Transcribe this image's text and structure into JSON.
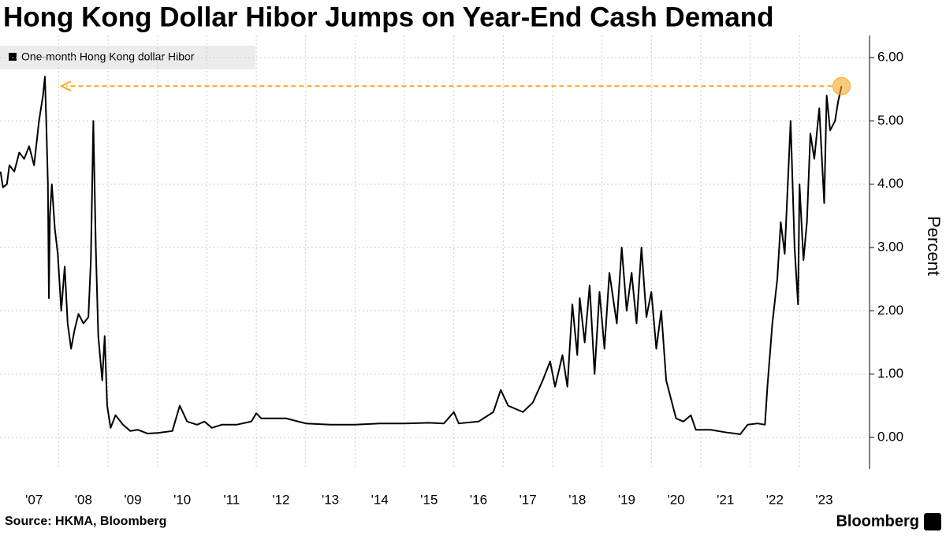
{
  "chart_data": {
    "type": "line",
    "title": "Hong Kong Dollar Hibor Jumps on Year-End Cash Demand",
    "ylabel": "Percent",
    "source": "Source: HKMA, Bloomberg",
    "brand": "Bloomberg",
    "legend": "top-left",
    "grid": true,
    "xlim": [
      2006.81,
      2024.37
    ],
    "ylim": [
      -0.5,
      6.35
    ],
    "xticks": [
      {
        "value": 2007,
        "label": "'07"
      },
      {
        "value": 2008,
        "label": "'08"
      },
      {
        "value": 2009,
        "label": "'09"
      },
      {
        "value": 2010,
        "label": "'10"
      },
      {
        "value": 2011,
        "label": "'11"
      },
      {
        "value": 2012,
        "label": "'12"
      },
      {
        "value": 2013,
        "label": "'13"
      },
      {
        "value": 2014,
        "label": "'14"
      },
      {
        "value": 2015,
        "label": "'15"
      },
      {
        "value": 2016,
        "label": "'16"
      },
      {
        "value": 2017,
        "label": "'17"
      },
      {
        "value": 2018,
        "label": "'18"
      },
      {
        "value": 2019,
        "label": "'19"
      },
      {
        "value": 2020,
        "label": "'20"
      },
      {
        "value": 2021,
        "label": "'21"
      },
      {
        "value": 2022,
        "label": "'22"
      },
      {
        "value": 2023,
        "label": "'23"
      }
    ],
    "yticks": [
      {
        "value": 0,
        "label": "0.00"
      },
      {
        "value": 1,
        "label": "1.00"
      },
      {
        "value": 2,
        "label": "2.00"
      },
      {
        "value": 3,
        "label": "3.00"
      },
      {
        "value": 4,
        "label": "4.00"
      },
      {
        "value": 5,
        "label": "5.00"
      },
      {
        "value": 6,
        "label": "6.00"
      }
    ],
    "x": [
      2006.82,
      2006.87,
      2006.95,
      2007.0,
      2007.1,
      2007.2,
      2007.3,
      2007.4,
      2007.5,
      2007.6,
      2007.68,
      2007.72,
      2007.75,
      2007.78,
      2007.8,
      2007.82,
      2007.86,
      2007.92,
      2007.98,
      2008.05,
      2008.12,
      2008.18,
      2008.25,
      2008.32,
      2008.4,
      2008.5,
      2008.6,
      2008.65,
      2008.7,
      2008.75,
      2008.8,
      2008.88,
      2008.93,
      2008.98,
      2009.05,
      2009.15,
      2009.3,
      2009.45,
      2009.6,
      2009.8,
      2010.0,
      2010.3,
      2010.45,
      2010.6,
      2010.8,
      2010.95,
      2011.1,
      2011.3,
      2011.6,
      2011.9,
      2012.0,
      2012.1,
      2012.6,
      2013.0,
      2013.5,
      2014.0,
      2014.5,
      2015.0,
      2015.5,
      2015.8,
      2016.0,
      2016.1,
      2016.5,
      2016.8,
      2016.95,
      2017.1,
      2017.4,
      2017.6,
      2017.8,
      2017.95,
      2018.05,
      2018.2,
      2018.3,
      2018.4,
      2018.5,
      2018.55,
      2018.65,
      2018.75,
      2018.85,
      2018.95,
      2019.05,
      2019.15,
      2019.3,
      2019.4,
      2019.5,
      2019.6,
      2019.7,
      2019.8,
      2019.9,
      2020.0,
      2020.1,
      2020.2,
      2020.3,
      2020.4,
      2020.5,
      2020.65,
      2020.8,
      2020.9,
      2021.2,
      2021.5,
      2021.8,
      2021.95,
      2022.15,
      2022.3,
      2022.35,
      2022.45,
      2022.55,
      2022.62,
      2022.7,
      2022.82,
      2022.9,
      2022.97,
      2023.0,
      2023.08,
      2023.15,
      2023.22,
      2023.3,
      2023.4,
      2023.5,
      2023.55,
      2023.62,
      2023.72,
      2023.78,
      2023.85
    ],
    "series": [
      {
        "name": "One-month Hong Kong dollar Hibor",
        "color": "#000000",
        "highlight_color": "#f5a623",
        "values": [
          4.2,
          3.95,
          4.0,
          4.3,
          4.2,
          4.5,
          4.4,
          4.6,
          4.3,
          5.0,
          5.4,
          5.7,
          4.9,
          4.0,
          2.2,
          3.5,
          4.0,
          3.3,
          2.9,
          2.0,
          2.7,
          1.8,
          1.4,
          1.7,
          1.95,
          1.8,
          1.9,
          2.8,
          5.0,
          3.0,
          1.6,
          0.9,
          1.6,
          0.5,
          0.15,
          0.35,
          0.2,
          0.1,
          0.12,
          0.06,
          0.07,
          0.1,
          0.5,
          0.25,
          0.2,
          0.25,
          0.15,
          0.2,
          0.2,
          0.25,
          0.38,
          0.3,
          0.3,
          0.22,
          0.2,
          0.2,
          0.22,
          0.22,
          0.23,
          0.22,
          0.4,
          0.22,
          0.25,
          0.4,
          0.75,
          0.5,
          0.4,
          0.55,
          0.9,
          1.2,
          0.8,
          1.3,
          0.8,
          2.1,
          1.3,
          2.2,
          1.5,
          2.4,
          1.0,
          2.3,
          1.4,
          2.6,
          1.8,
          3.0,
          2.0,
          2.6,
          1.8,
          3.0,
          1.9,
          2.3,
          1.4,
          2.0,
          0.9,
          0.6,
          0.3,
          0.25,
          0.35,
          0.12,
          0.12,
          0.08,
          0.05,
          0.2,
          0.22,
          0.2,
          0.8,
          1.8,
          2.5,
          3.4,
          2.9,
          5.0,
          3.0,
          2.1,
          4.0,
          2.8,
          3.4,
          4.8,
          4.4,
          5.2,
          3.7,
          5.4,
          4.85,
          5.0,
          5.3,
          5.55
        ]
      }
    ]
  }
}
